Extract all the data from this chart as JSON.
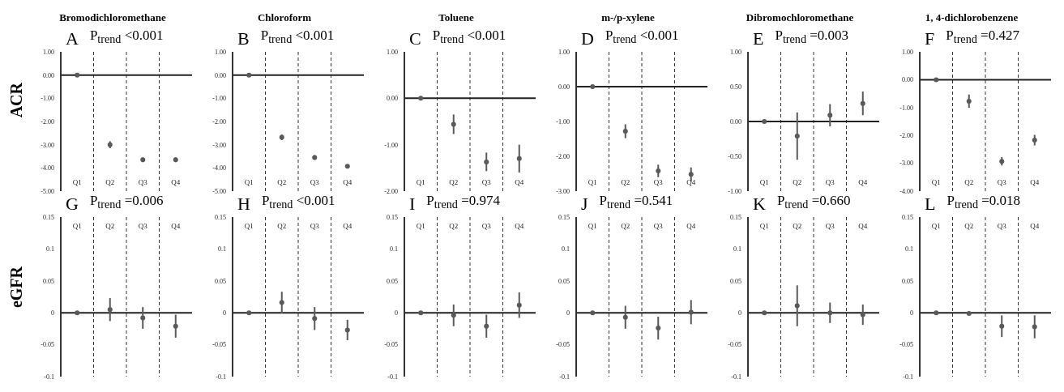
{
  "chart_data": [
    {
      "type": "scatter",
      "title": "Bromodichloromethane",
      "ylabel": "ACR",
      "annotations": [
        "A",
        "P$_{trend}$ <0.001"
      ],
      "categories": [
        "Q1",
        "Q2",
        "Q3",
        "Q4"
      ],
      "ylim": [
        -5,
        1
      ],
      "yticks": [
        {
          "value": -5,
          "label": "-5.00"
        },
        {
          "value": -4,
          "label": "-4.00"
        },
        {
          "value": -3,
          "label": "-3.00"
        },
        {
          "value": -2,
          "label": "-2.00"
        },
        {
          "value": -1,
          "label": "-1.00"
        },
        {
          "value": 0,
          "label": "0.00"
        },
        {
          "value": 1,
          "label": "1.00"
        }
      ],
      "grid": "x",
      "marker": "circle",
      "ref_lines": [
        {
          "axis": "y",
          "value": 0
        }
      ],
      "series": [
        {
          "color": "#595959",
          "values": [
            0,
            -3.0,
            -3.65,
            -3.65
          ],
          "errors": [
            null,
            0.15,
            0.1,
            0.1
          ]
        }
      ]
    },
    {
      "type": "scatter",
      "title": "Chloroform",
      "annotations": [
        "B",
        "P$_{trend}$ <0.001"
      ],
      "categories": [
        "Q1",
        "Q2",
        "Q3",
        "Q4"
      ],
      "ylim": [
        -5,
        1
      ],
      "yticks": [
        {
          "value": -5,
          "label": "-5.00"
        },
        {
          "value": -4,
          "label": "-4.00"
        },
        {
          "value": -3,
          "label": "-3.00"
        },
        {
          "value": -2,
          "label": "-2.00"
        },
        {
          "value": -1,
          "label": "-1.00"
        },
        {
          "value": 0,
          "label": "0.00"
        },
        {
          "value": 1,
          "label": "1.00"
        }
      ],
      "grid": "x",
      "marker": "circle",
      "ref_lines": [
        {
          "axis": "y",
          "value": 0
        }
      ],
      "series": [
        {
          "color": "#595959",
          "values": [
            0,
            -2.68,
            -3.55,
            -3.93
          ],
          "errors": [
            null,
            0.12,
            0.1,
            0.08
          ]
        }
      ]
    },
    {
      "type": "scatter",
      "title": "Toluene",
      "annotations": [
        "C",
        "P$_{trend}$ <0.001"
      ],
      "categories": [
        "Q1",
        "Q2",
        "Q3",
        "Q4"
      ],
      "ylim": [
        -2,
        1
      ],
      "yticks": [
        {
          "value": -2,
          "label": "-2.00"
        },
        {
          "value": -1,
          "label": "-1.00"
        },
        {
          "value": 0,
          "label": "0.00"
        },
        {
          "value": 1,
          "label": "1.00"
        }
      ],
      "grid": "x",
      "marker": "circle",
      "ref_lines": [
        {
          "axis": "y",
          "value": 0
        }
      ],
      "series": [
        {
          "color": "#595959",
          "values": [
            0,
            -0.56,
            -1.37,
            -1.3
          ],
          "errors": [
            null,
            0.21,
            0.2,
            0.3
          ]
        }
      ]
    },
    {
      "type": "scatter",
      "title": "m-/p-xylene",
      "annotations": [
        "D",
        "P$_{trend}$ <0.001"
      ],
      "categories": [
        "Q1",
        "Q2",
        "Q3",
        "Q4"
      ],
      "ylim": [
        -3,
        1
      ],
      "yticks": [
        {
          "value": -3,
          "label": "-3.00"
        },
        {
          "value": -2,
          "label": "-2.00"
        },
        {
          "value": -1,
          "label": "-1.00"
        },
        {
          "value": 0,
          "label": "0.00"
        },
        {
          "value": 1,
          "label": "1.00"
        }
      ],
      "grid": "x",
      "marker": "circle",
      "ref_lines": [
        {
          "axis": "y",
          "value": 0
        }
      ],
      "series": [
        {
          "color": "#595959",
          "values": [
            0,
            -1.28,
            -2.42,
            -2.52
          ],
          "errors": [
            null,
            0.2,
            0.18,
            0.2
          ]
        }
      ]
    },
    {
      "type": "scatter",
      "title": "Dibromochloromethane",
      "annotations": [
        "E",
        "P$_{trend}$ =0.003"
      ],
      "categories": [
        "Q1",
        "Q2",
        "Q3",
        "Q4"
      ],
      "ylim": [
        -1,
        1
      ],
      "yticks": [
        {
          "value": -1,
          "label": "-1.00"
        },
        {
          "value": -0.5,
          "label": "-0.50"
        },
        {
          "value": 0,
          "label": "0.00"
        },
        {
          "value": 0.5,
          "label": "0.50"
        },
        {
          "value": 1,
          "label": "1.00"
        }
      ],
      "grid": "x",
      "marker": "circle",
      "ref_lines": [
        {
          "axis": "y",
          "value": 0
        }
      ],
      "series": [
        {
          "color": "#595959",
          "values": [
            0,
            -0.21,
            0.09,
            0.26
          ],
          "errors": [
            null,
            0.34,
            0.16,
            0.17
          ]
        }
      ]
    },
    {
      "type": "scatter",
      "title": "1, 4-dichlorobenzene",
      "annotations": [
        "F",
        "P$_{trend}$ =0.427"
      ],
      "categories": [
        "Q1",
        "Q2",
        "Q3",
        "Q4"
      ],
      "ylim": [
        -4,
        1
      ],
      "yticks": [
        {
          "value": -4,
          "label": "-4.00"
        },
        {
          "value": -3,
          "label": "-3.00"
        },
        {
          "value": -2,
          "label": "-2.00"
        },
        {
          "value": -1,
          "label": "-1.00"
        },
        {
          "value": 0,
          "label": "0.00"
        },
        {
          "value": 1,
          "label": "1.00"
        }
      ],
      "grid": "x",
      "marker": "circle",
      "ref_lines": [
        {
          "axis": "y",
          "value": 0
        }
      ],
      "series": [
        {
          "color": "#595959",
          "values": [
            0,
            -0.77,
            -2.93,
            -2.17
          ],
          "errors": [
            null,
            0.24,
            0.15,
            0.19
          ]
        }
      ]
    },
    {
      "type": "scatter",
      "ylabel": "eGFR",
      "annotations": [
        "G",
        "P$_{trend}$ =0.006"
      ],
      "categories": [
        "Q1",
        "Q2",
        "Q3",
        "Q4"
      ],
      "ylim": [
        -0.1,
        0.15
      ],
      "yticks": [
        -0.1,
        -0.05,
        0,
        0.05,
        0.1,
        0.15
      ],
      "grid": "x",
      "marker": "circle",
      "ref_lines": [
        {
          "axis": "y",
          "value": 0
        }
      ],
      "series": [
        {
          "color": "#595959",
          "values": [
            0,
            0.005,
            -0.008,
            -0.021
          ],
          "errors": [
            null,
            0.018,
            0.017,
            0.018
          ]
        }
      ]
    },
    {
      "type": "scatter",
      "annotations": [
        "H",
        "P$_{trend}$ <0.001"
      ],
      "categories": [
        "Q1",
        "Q2",
        "Q3",
        "Q4"
      ],
      "ylim": [
        -0.1,
        0.15
      ],
      "yticks": [
        -0.1,
        -0.05,
        0,
        0.05,
        0.1,
        0.15
      ],
      "grid": "x",
      "marker": "circle",
      "ref_lines": [
        {
          "axis": "y",
          "value": 0
        }
      ],
      "series": [
        {
          "color": "#595959",
          "values": [
            0,
            0.016,
            -0.009,
            -0.027
          ],
          "errors": [
            null,
            0.017,
            0.018,
            0.016
          ]
        }
      ]
    },
    {
      "type": "scatter",
      "annotations": [
        "I",
        "P$_{trend}$ =0.974"
      ],
      "categories": [
        "Q1",
        "Q2",
        "Q3",
        "Q4"
      ],
      "ylim": [
        -0.1,
        0.15
      ],
      "yticks": [
        -0.1,
        -0.05,
        0,
        0.05,
        0.1,
        0.15
      ],
      "grid": "x",
      "marker": "circle",
      "ref_lines": [
        {
          "axis": "y",
          "value": 0
        }
      ],
      "series": [
        {
          "color": "#595959",
          "values": [
            0,
            -0.004,
            -0.021,
            0.012
          ],
          "errors": [
            null,
            0.017,
            0.018,
            0.02
          ]
        }
      ]
    },
    {
      "type": "scatter",
      "annotations": [
        "J",
        "P$_{trend}$ =0.541"
      ],
      "categories": [
        "Q1",
        "Q2",
        "Q3",
        "Q4"
      ],
      "ylim": [
        -0.1,
        0.15
      ],
      "yticks": [
        -0.1,
        -0.05,
        0,
        0.05,
        0.1,
        0.15
      ],
      "grid": "x",
      "marker": "circle",
      "ref_lines": [
        {
          "axis": "y",
          "value": 0
        }
      ],
      "series": [
        {
          "color": "#595959",
          "values": [
            0,
            -0.007,
            -0.024,
            0.001
          ],
          "errors": [
            null,
            0.018,
            0.018,
            0.019
          ]
        }
      ]
    },
    {
      "type": "scatter",
      "annotations": [
        "K",
        "P$_{trend}$ =0.660"
      ],
      "categories": [
        "Q1",
        "Q2",
        "Q3",
        "Q4"
      ],
      "ylim": [
        -0.1,
        0.15
      ],
      "yticks": [
        -0.1,
        -0.05,
        0,
        0.05,
        0.1,
        0.15
      ],
      "grid": "x",
      "marker": "circle",
      "ref_lines": [
        {
          "axis": "y",
          "value": 0
        }
      ],
      "series": [
        {
          "color": "#595959",
          "values": [
            0,
            0.011,
            0,
            -0.003
          ],
          "errors": [
            null,
            0.032,
            0.016,
            0.016
          ]
        }
      ]
    },
    {
      "type": "scatter",
      "annotations": [
        "L",
        "P$_{trend}$ =0.018"
      ],
      "categories": [
        "Q1",
        "Q2",
        "Q3",
        "Q4"
      ],
      "ylim": [
        -0.1,
        0.15
      ],
      "yticks": [
        -0.1,
        -0.05,
        0,
        0.05,
        0.1,
        0.15
      ],
      "grid": "x",
      "marker": "circle",
      "ref_lines": [
        {
          "axis": "y",
          "value": 0
        }
      ],
      "series": [
        {
          "color": "#595959",
          "values": [
            0,
            -0.001,
            -0.021,
            -0.022
          ],
          "errors": [
            null,
            null,
            0.017,
            0.018
          ]
        }
      ]
    }
  ]
}
